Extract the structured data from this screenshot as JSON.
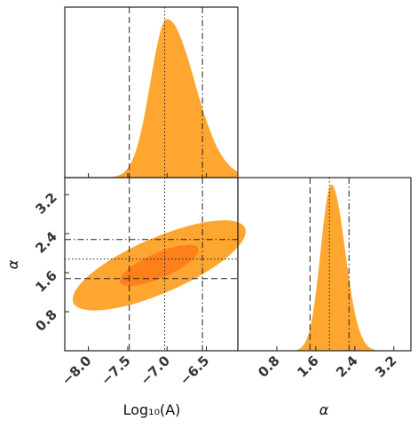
{
  "chart_data": {
    "type": "corner",
    "parameters": [
      "Log10(A)",
      "alpha"
    ],
    "axis_labels": {
      "x_left": "Log₁₀(A)",
      "x_right": "α",
      "y_joint": "α"
    },
    "colors": {
      "fill": "#FFA630",
      "dark": "#FF7F1A"
    },
    "logA": {
      "range": [
        -8.3,
        -6.1
      ],
      "ticks": [
        -8.0,
        -7.5,
        -7.0,
        -6.5
      ],
      "tick_labels": [
        "−8.0",
        "−7.5",
        "−7.0",
        "−6.5"
      ],
      "quantiles": {
        "low": -7.48,
        "median": -7.03,
        "high": -6.55
      },
      "marginal": {
        "center": -7.0,
        "sigma": 0.28,
        "skew": 0.25,
        "peak": 0.93
      }
    },
    "alpha": {
      "range": [
        0.0,
        3.55
      ],
      "ticks": [
        0.8,
        1.6,
        2.4,
        3.2
      ],
      "tick_labels": [
        "0.8",
        "1.6",
        "2.4",
        "3.2"
      ],
      "quantiles": {
        "low": 1.48,
        "median": 1.88,
        "high": 2.28
      },
      "marginal": {
        "center": 1.92,
        "sigma": 0.25,
        "skew": 0.12,
        "peak": 0.96
      }
    },
    "joint": {
      "center": [
        -7.1,
        1.75
      ],
      "outer_contour": {
        "sigma_logA": 0.5,
        "sigma_alpha": 0.42,
        "rho": 0.75,
        "level": 2.2
      },
      "inner_contour": {
        "sigma_logA": 0.5,
        "sigma_alpha": 0.42,
        "rho": 0.75,
        "level": 1.0
      }
    }
  }
}
